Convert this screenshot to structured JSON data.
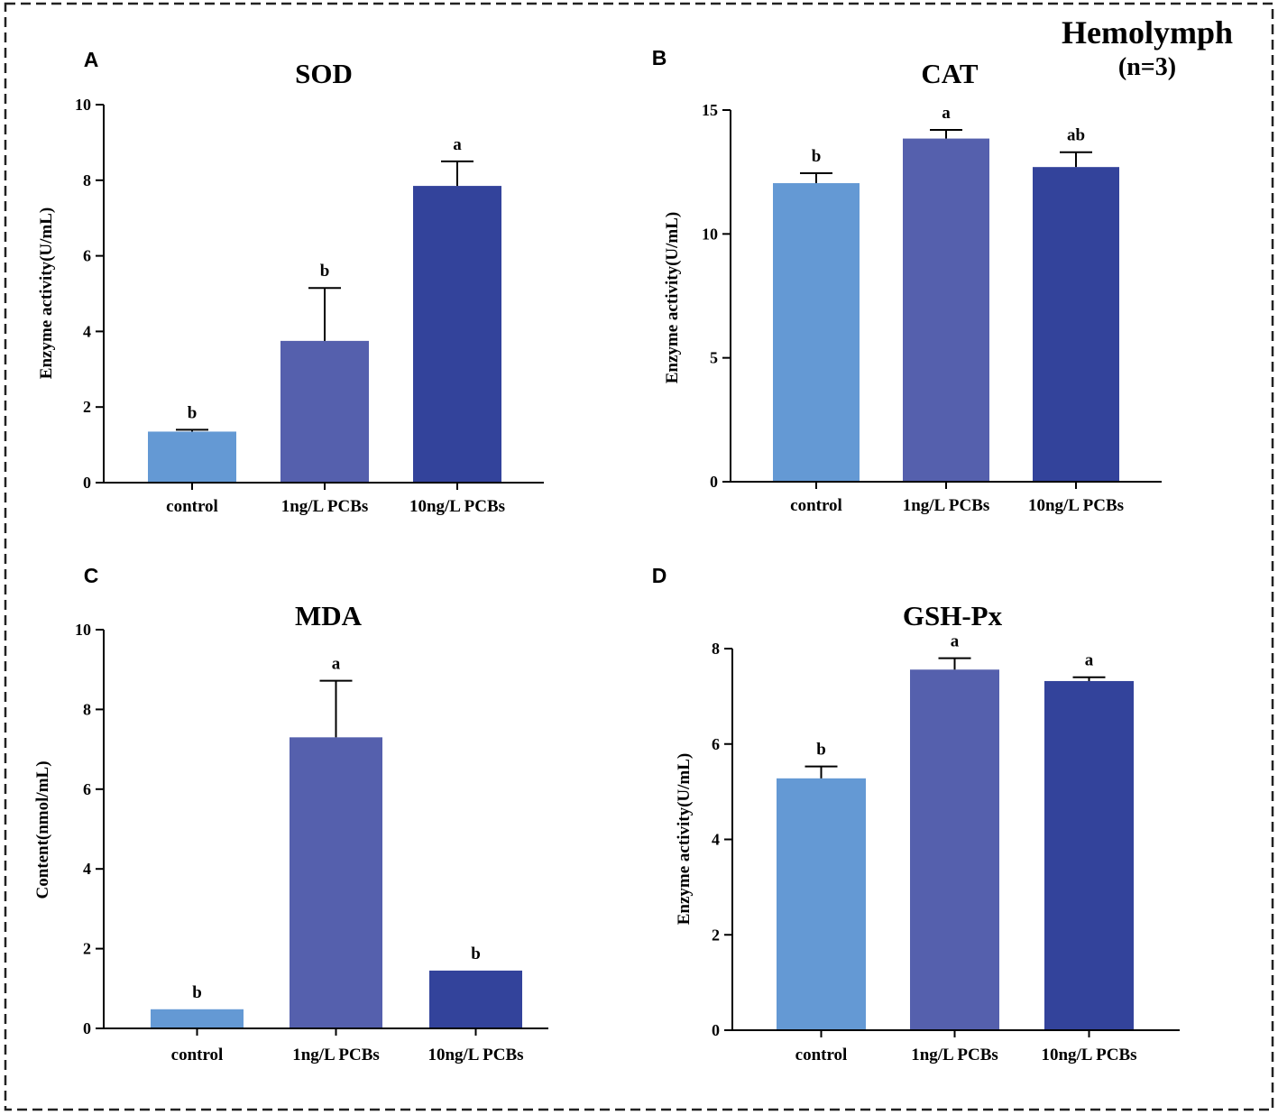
{
  "figure": {
    "header_title": "Hemolymph",
    "header_subtitle": "(n=3)",
    "colors": {
      "control": "#6499d4",
      "low": "#5560ad",
      "high": "#33439b",
      "frame": "#222222"
    }
  },
  "chart_data": [
    {
      "panel": "A",
      "type": "bar",
      "title": "SOD",
      "ylabel": "Enzyme activity(U/mL)",
      "xlabel": "",
      "categories": [
        "control",
        "1ng/L PCBs",
        "10ng/L PCBs"
      ],
      "values": [
        1.35,
        3.75,
        7.85
      ],
      "errors": [
        0.05,
        1.4,
        0.65
      ],
      "significance": [
        "b",
        "b",
        "a"
      ],
      "ylim": [
        0,
        10
      ],
      "yticks": [
        0,
        2,
        4,
        6,
        8,
        10
      ],
      "grid": false
    },
    {
      "panel": "B",
      "type": "bar",
      "title": "CAT",
      "ylabel": "Enzyme activity(U/mL)",
      "xlabel": "",
      "categories": [
        "control",
        "1ng/L PCBs",
        "10ng/L PCBs"
      ],
      "values": [
        12.05,
        13.85,
        12.7
      ],
      "errors": [
        0.4,
        0.35,
        0.6
      ],
      "significance": [
        "b",
        "a",
        "ab"
      ],
      "ylim": [
        0,
        15
      ],
      "yticks": [
        0,
        5,
        10,
        15
      ],
      "grid": false
    },
    {
      "panel": "C",
      "type": "bar",
      "title": "MDA",
      "ylabel": "Content(nmol/mL)",
      "xlabel": "",
      "categories": [
        "control",
        "1ng/L PCBs",
        "10ng/L PCBs"
      ],
      "values": [
        0.48,
        7.3,
        1.45
      ],
      "errors": [
        0,
        1.42,
        0
      ],
      "significance": [
        "b",
        "a",
        "b"
      ],
      "ylim": [
        0,
        10
      ],
      "yticks": [
        0,
        2,
        4,
        6,
        8,
        10
      ],
      "grid": false
    },
    {
      "panel": "D",
      "type": "bar",
      "title": "GSH-Px",
      "ylabel": "Enzyme activity(U/mL)",
      "xlabel": "",
      "categories": [
        "control",
        "1ng/L PCBs",
        "10ng/L PCBs"
      ],
      "values": [
        5.28,
        7.56,
        7.32
      ],
      "errors": [
        0.25,
        0.24,
        0.08
      ],
      "significance": [
        "b",
        "a",
        "a"
      ],
      "ylim": [
        0,
        8
      ],
      "yticks": [
        0,
        2,
        4,
        6,
        8
      ],
      "grid": false
    }
  ]
}
